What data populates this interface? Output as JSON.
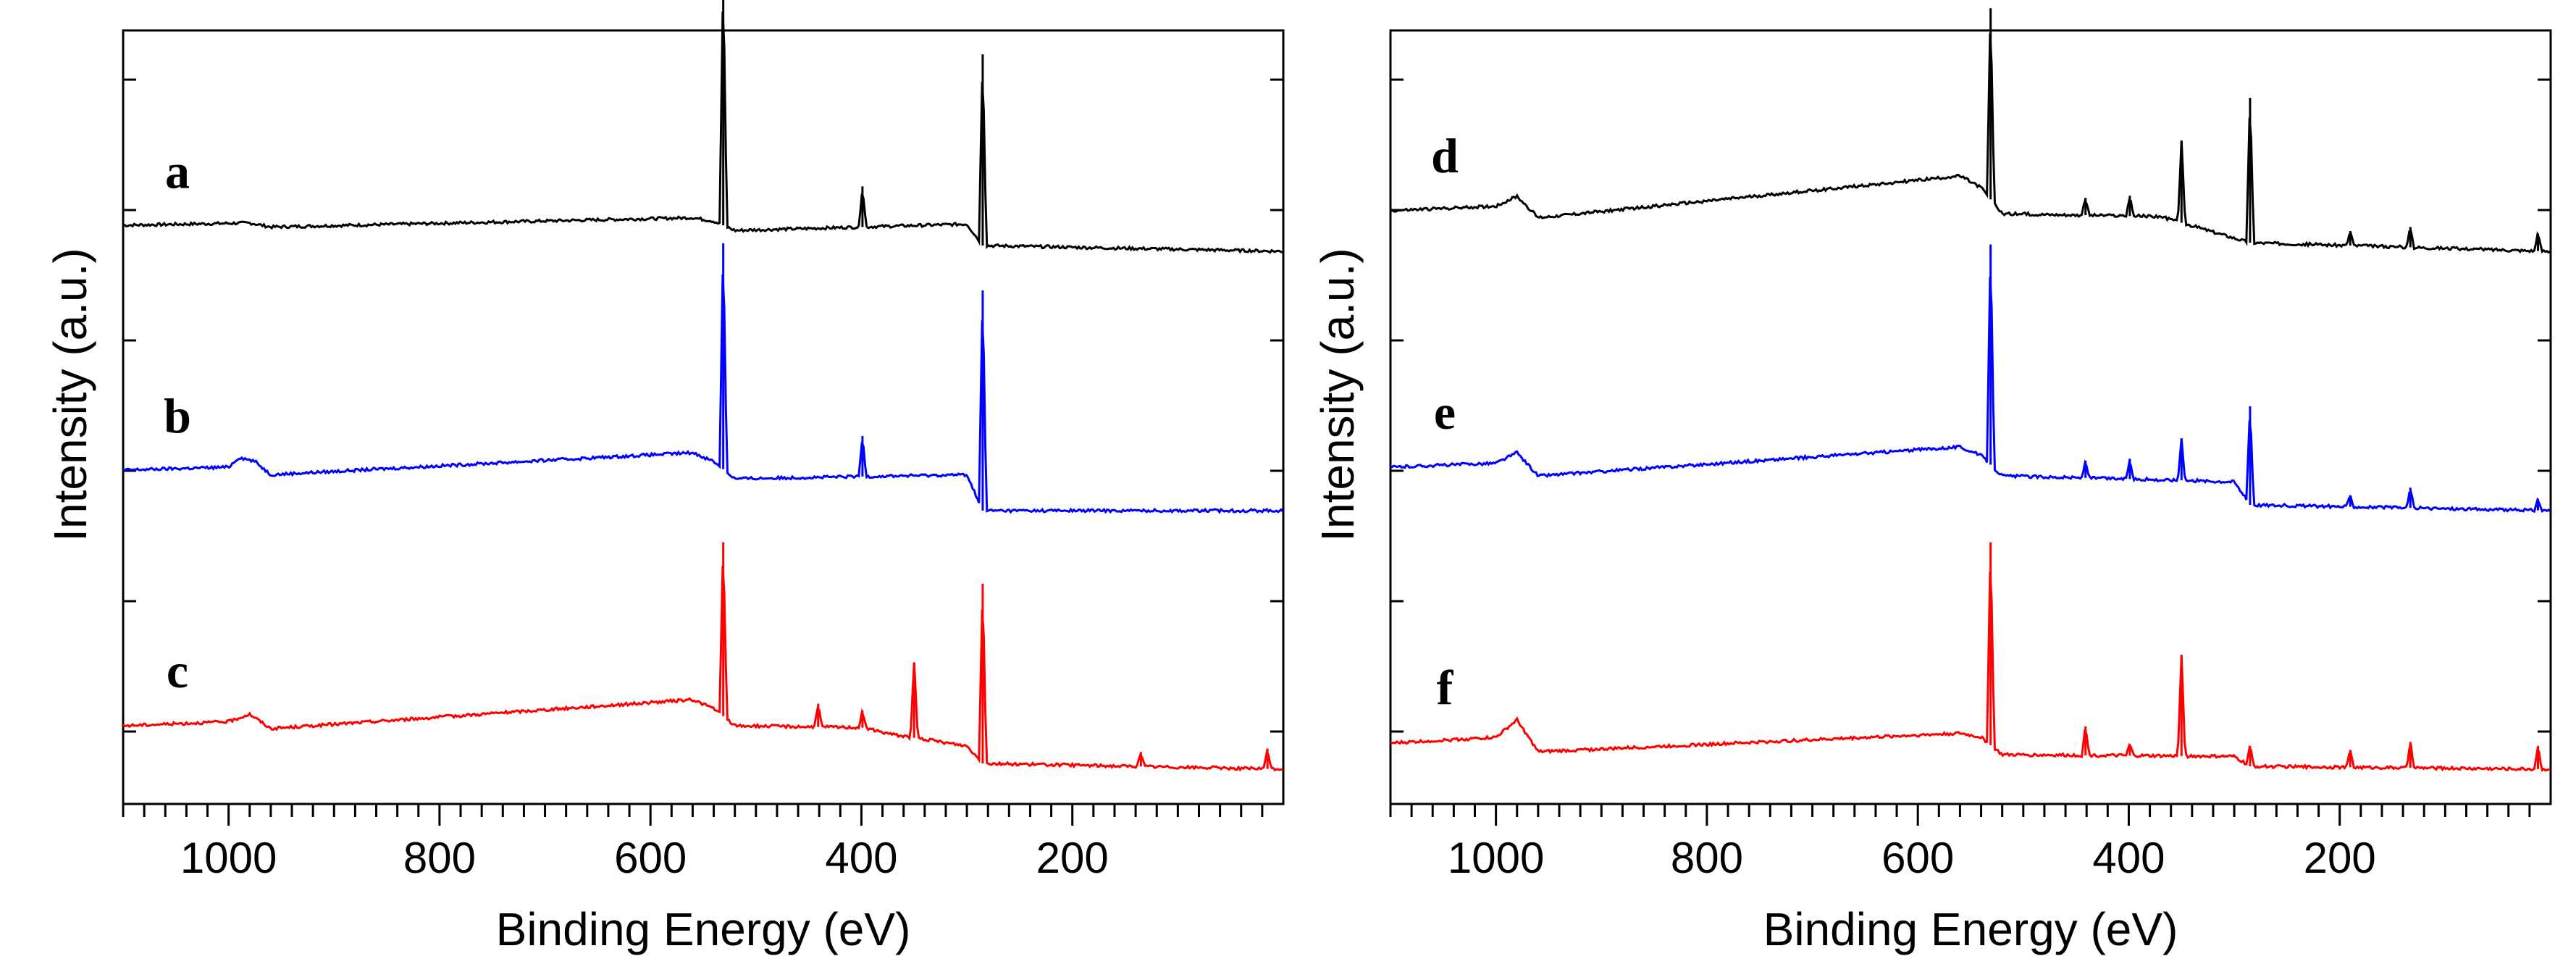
{
  "chart_data": [
    {
      "type": "line",
      "panel": "left",
      "xlabel": "Binding Energy (eV)",
      "ylabel": "Intensity (a.u.)",
      "xlim": [
        1100,
        0
      ],
      "xreversed": true,
      "xticks": [
        1000,
        800,
        600,
        400,
        200
      ],
      "xtick_labels": [
        "1000",
        "800",
        "600",
        "400",
        "200"
      ],
      "yaxis_units": "a.u.",
      "grid": false,
      "series": [
        {
          "name": "a",
          "label": "a",
          "color": "#000000",
          "baseline": [
            [
              1100,
              0.45
            ],
            [
              980,
              0.49
            ],
            [
              960,
              0.42
            ],
            [
              560,
              0.58
            ],
            [
              540,
              0.52
            ],
            [
              520,
              0.36
            ],
            [
              300,
              0.47
            ],
            [
              285,
              0.1
            ],
            [
              0,
              0.0
            ]
          ],
          "peaks": [
            {
              "x": 531,
              "height": 4.3
            },
            {
              "x": 399,
              "height": 0.7
            },
            {
              "x": 285,
              "height": 3.3
            }
          ]
        },
        {
          "name": "b",
          "label": "b",
          "color": "#0000ff",
          "baseline": [
            [
              1100,
              0.7
            ],
            [
              1000,
              0.75
            ],
            [
              990,
              0.92
            ],
            [
              975,
              0.85
            ],
            [
              960,
              0.62
            ],
            [
              560,
              1.0
            ],
            [
              540,
              0.85
            ],
            [
              520,
              0.55
            ],
            [
              300,
              0.62
            ],
            [
              285,
              0.0
            ],
            [
              0,
              0.0
            ]
          ],
          "peaks": [
            {
              "x": 531,
              "height": 3.9
            },
            {
              "x": 399,
              "height": 0.7
            },
            {
              "x": 285,
              "height": 3.8
            }
          ]
        },
        {
          "name": "c",
          "label": "c",
          "color": "#ff0000",
          "baseline": [
            [
              1100,
              0.75
            ],
            [
              1000,
              0.82
            ],
            [
              980,
              0.95
            ],
            [
              960,
              0.7
            ],
            [
              560,
              1.2
            ],
            [
              540,
              1.05
            ],
            [
              520,
              0.75
            ],
            [
              400,
              0.72
            ],
            [
              370,
              0.6
            ],
            [
              300,
              0.4
            ],
            [
              285,
              0.1
            ],
            [
              0,
              0.0
            ]
          ],
          "peaks": [
            {
              "x": 531,
              "height": 3.0
            },
            {
              "x": 441,
              "height": 0.4
            },
            {
              "x": 399,
              "height": 0.3
            },
            {
              "x": 350,
              "height": 1.3
            },
            {
              "x": 285,
              "height": 3.1
            },
            {
              "x": 135,
              "height": 0.25
            },
            {
              "x": 15,
              "height": 0.35
            }
          ]
        }
      ]
    },
    {
      "type": "line",
      "panel": "right",
      "xlabel": "Binding Energy (eV)",
      "ylabel": "Intensity (a.u.)",
      "xlim": [
        1100,
        0
      ],
      "xreversed": true,
      "xticks": [
        1000,
        800,
        600,
        400,
        200
      ],
      "xtick_labels": [
        "1000",
        "800",
        "600",
        "400",
        "200"
      ],
      "yaxis_units": "a.u.",
      "grid": false,
      "series": [
        {
          "name": "d",
          "label": "d",
          "color": "#000000",
          "baseline": [
            [
              1100,
              0.7
            ],
            [
              1000,
              0.78
            ],
            [
              980,
              0.95
            ],
            [
              960,
              0.58
            ],
            [
              560,
              1.3
            ],
            [
              540,
              1.1
            ],
            [
              520,
              0.65
            ],
            [
              370,
              0.6
            ],
            [
              285,
              0.15
            ],
            [
              0,
              0.0
            ]
          ],
          "peaks": [
            {
              "x": 531,
              "height": 3.3
            },
            {
              "x": 441,
              "height": 0.3
            },
            {
              "x": 399,
              "height": 0.35
            },
            {
              "x": 350,
              "height": 1.4
            },
            {
              "x": 285,
              "height": 2.5
            },
            {
              "x": 190,
              "height": 0.25
            },
            {
              "x": 133,
              "height": 0.35
            },
            {
              "x": 12,
              "height": 0.3
            }
          ]
        },
        {
          "name": "e",
          "label": "e",
          "color": "#0000ff",
          "baseline": [
            [
              1100,
              0.75
            ],
            [
              1000,
              0.82
            ],
            [
              980,
              1.0
            ],
            [
              960,
              0.6
            ],
            [
              560,
              1.1
            ],
            [
              540,
              0.95
            ],
            [
              520,
              0.6
            ],
            [
              300,
              0.5
            ],
            [
              285,
              0.1
            ],
            [
              0,
              0.0
            ]
          ],
          "peaks": [
            {
              "x": 531,
              "height": 3.8
            },
            {
              "x": 441,
              "height": 0.3
            },
            {
              "x": 399,
              "height": 0.35
            },
            {
              "x": 350,
              "height": 0.7
            },
            {
              "x": 285,
              "height": 1.7
            },
            {
              "x": 190,
              "height": 0.2
            },
            {
              "x": 133,
              "height": 0.35
            },
            {
              "x": 12,
              "height": 0.2
            }
          ]
        },
        {
          "name": "f",
          "label": "f",
          "color": "#ff0000",
          "baseline": [
            [
              1100,
              0.45
            ],
            [
              1000,
              0.55
            ],
            [
              980,
              0.85
            ],
            [
              960,
              0.3
            ],
            [
              560,
              0.62
            ],
            [
              540,
              0.55
            ],
            [
              520,
              0.25
            ],
            [
              300,
              0.22
            ],
            [
              285,
              0.05
            ],
            [
              0,
              0.0
            ]
          ],
          "peaks": [
            {
              "x": 531,
              "height": 3.5
            },
            {
              "x": 441,
              "height": 0.5
            },
            {
              "x": 399,
              "height": 0.2
            },
            {
              "x": 350,
              "height": 1.75
            },
            {
              "x": 285,
              "height": 0.35
            },
            {
              "x": 190,
              "height": 0.3
            },
            {
              "x": 133,
              "height": 0.45
            },
            {
              "x": 12,
              "height": 0.4
            }
          ]
        }
      ]
    }
  ]
}
